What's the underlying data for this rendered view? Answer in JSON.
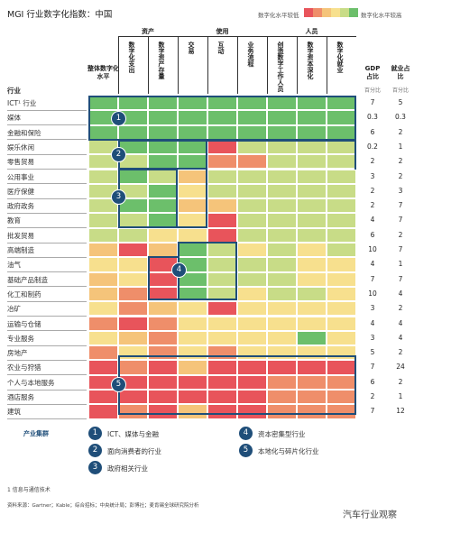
{
  "title": "MGI 行业数字化指数：中国",
  "legend": {
    "low_label": "数字化水平较低",
    "high_label": "数字化水平较高",
    "scale_colors": [
      "#e8545b",
      "#ef8e6a",
      "#f5c47a",
      "#f7e08e",
      "#c8dc87",
      "#6cbf6b"
    ]
  },
  "groups": [
    {
      "label": "资产"
    },
    {
      "label": "使用"
    },
    {
      "label": "人员"
    }
  ],
  "columns": [
    "整体数字化水平",
    "数字化支出",
    "数字资产存量",
    "交易",
    "互动",
    "业务流程",
    "创造数字工作人员",
    "数字资本深化",
    "数字化就业"
  ],
  "industry_header": "行业",
  "gdp_header": "GDP占比",
  "gdp_sub": "百分比",
  "emp_header": "就业占比",
  "emp_sub": "百分比",
  "chart_data": {
    "type": "heatmap",
    "title": "MGI 行业数字化指数：中国",
    "color_scale": {
      "1": "#e8545b",
      "2": "#ef8e6a",
      "3": "#f5c47a",
      "4": "#f7e08e",
      "5": "#c8dc87",
      "6": "#6cbf6b"
    },
    "rows": [
      {
        "industry": "ICT¹ 行业",
        "levels": [
          6,
          6,
          6,
          6,
          6,
          6,
          6,
          6,
          6
        ],
        "gdp": "7",
        "emp": "5"
      },
      {
        "industry": "媒体",
        "levels": [
          6,
          6,
          6,
          6,
          6,
          6,
          6,
          6,
          6
        ],
        "gdp": "0.3",
        "emp": "0.3"
      },
      {
        "industry": "金融和保险",
        "levels": [
          6,
          6,
          6,
          6,
          6,
          6,
          6,
          6,
          6
        ],
        "gdp": "6",
        "emp": "2"
      },
      {
        "industry": "娱乐休闲",
        "levels": [
          5,
          6,
          6,
          6,
          1,
          5,
          5,
          5,
          5
        ],
        "gdp": "0.2",
        "emp": "1"
      },
      {
        "industry": "零售贸易",
        "levels": [
          5,
          5,
          6,
          6,
          2,
          2,
          5,
          5,
          5
        ],
        "gdp": "2",
        "emp": "2"
      },
      {
        "industry": "公用事业",
        "levels": [
          5,
          6,
          5,
          3,
          5,
          5,
          5,
          5,
          5
        ],
        "gdp": "3",
        "emp": "2"
      },
      {
        "industry": "医疗保健",
        "levels": [
          5,
          5,
          6,
          4,
          5,
          5,
          5,
          5,
          5
        ],
        "gdp": "2",
        "emp": "3"
      },
      {
        "industry": "政府政务",
        "levels": [
          5,
          6,
          6,
          3,
          3,
          5,
          5,
          5,
          5
        ],
        "gdp": "2",
        "emp": "7"
      },
      {
        "industry": "教育",
        "levels": [
          5,
          5,
          6,
          4,
          1,
          5,
          5,
          5,
          5
        ],
        "gdp": "4",
        "emp": "7"
      },
      {
        "industry": "批发贸易",
        "levels": [
          5,
          5,
          4,
          4,
          1,
          5,
          5,
          5,
          5
        ],
        "gdp": "6",
        "emp": "2"
      },
      {
        "industry": "高端制造",
        "levels": [
          3,
          1,
          3,
          6,
          5,
          4,
          5,
          4,
          5
        ],
        "gdp": "10",
        "emp": "7"
      },
      {
        "industry": "油气",
        "levels": [
          4,
          4,
          1,
          6,
          5,
          5,
          5,
          4,
          4
        ],
        "gdp": "4",
        "emp": "1"
      },
      {
        "industry": "基础产品制造",
        "levels": [
          3,
          4,
          1,
          6,
          5,
          5,
          5,
          4,
          4
        ],
        "gdp": "7",
        "emp": "7"
      },
      {
        "industry": "化工和制药",
        "levels": [
          3,
          2,
          1,
          6,
          5,
          4,
          5,
          5,
          4
        ],
        "gdp": "10",
        "emp": "4"
      },
      {
        "industry": "冶矿",
        "levels": [
          4,
          2,
          3,
          4,
          1,
          4,
          4,
          4,
          4
        ],
        "gdp": "3",
        "emp": "2"
      },
      {
        "industry": "运输与仓储",
        "levels": [
          2,
          1,
          2,
          4,
          4,
          4,
          4,
          4,
          4
        ],
        "gdp": "4",
        "emp": "4"
      },
      {
        "industry": "专业服务",
        "levels": [
          4,
          3,
          2,
          4,
          4,
          4,
          4,
          6,
          4
        ],
        "gdp": "3",
        "emp": "4"
      },
      {
        "industry": "房地产",
        "levels": [
          2,
          4,
          2,
          4,
          2,
          4,
          4,
          4,
          4
        ],
        "gdp": "5",
        "emp": "2"
      },
      {
        "industry": "农业与狩猎",
        "levels": [
          1,
          2,
          1,
          3,
          1,
          1,
          1,
          1,
          1
        ],
        "gdp": "7",
        "emp": "24"
      },
      {
        "industry": "个人与本地服务",
        "levels": [
          1,
          1,
          1,
          1,
          1,
          1,
          2,
          2,
          2
        ],
        "gdp": "6",
        "emp": "2"
      },
      {
        "industry": "酒店服务",
        "levels": [
          1,
          1,
          1,
          1,
          1,
          1,
          2,
          2,
          2
        ],
        "gdp": "2",
        "emp": "1"
      },
      {
        "industry": "建筑",
        "levels": [
          1,
          2,
          1,
          3,
          1,
          1,
          2,
          2,
          2
        ],
        "gdp": "7",
        "emp": "12"
      }
    ]
  },
  "clusters_title": "产业集群",
  "clusters": [
    {
      "num": "1",
      "label": "ICT、媒体与金融"
    },
    {
      "num": "2",
      "label": "面向消费者的行业"
    },
    {
      "num": "3",
      "label": "政府相关行业"
    },
    {
      "num": "4",
      "label": "资本密集型行业"
    },
    {
      "num": "5",
      "label": "本地化与碎片化行业"
    }
  ],
  "footnote": "1 信息与通信技术",
  "source": "资料来源：Gartner；Kable；综合招标；中央统计局；彭博社；麦肯锡全球研究院分析",
  "watermark": "汽车行业观察"
}
